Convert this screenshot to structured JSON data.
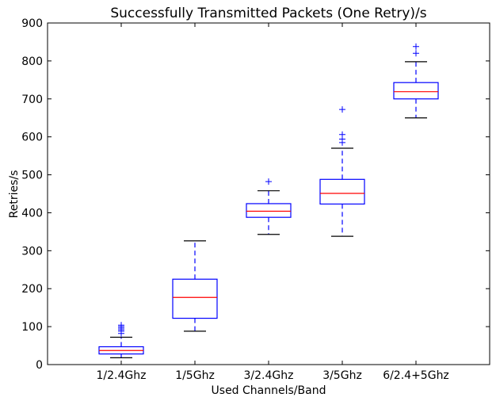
{
  "chart_data": {
    "type": "box",
    "title": "Successfully Transmitted Packets (One Retry)/s",
    "xlabel": "Used Channels/Band",
    "ylabel": "Retries/s",
    "ylim": [
      0,
      900
    ],
    "yticks": [
      0,
      100,
      200,
      300,
      400,
      500,
      600,
      700,
      800,
      900
    ],
    "grid": false,
    "colors": {
      "box": "#0000ff",
      "median": "#ff0000",
      "whisker_cap": "#000000",
      "flier": "#0000ff"
    },
    "categories": [
      "1/2.4Ghz",
      "1/5Ghz",
      "3/2.4Ghz",
      "3/5Ghz",
      "6/2.4+5Ghz"
    ],
    "boxes": [
      {
        "whisker_low": 18,
        "q1": 28,
        "median": 37,
        "q3": 47,
        "whisker_high": 72,
        "fliers": [
          82,
          88,
          92,
          96,
          100,
          104
        ]
      },
      {
        "whisker_low": 88,
        "q1": 122,
        "median": 177,
        "q3": 225,
        "whisker_high": 326,
        "fliers": []
      },
      {
        "whisker_low": 343,
        "q1": 388,
        "median": 404,
        "q3": 424,
        "whisker_high": 458,
        "fliers": [
          482
        ]
      },
      {
        "whisker_low": 338,
        "q1": 423,
        "median": 451,
        "q3": 488,
        "whisker_high": 570,
        "fliers": [
          585,
          594,
          606,
          672
        ]
      },
      {
        "whisker_low": 650,
        "q1": 700,
        "median": 719,
        "q3": 743,
        "whisker_high": 798,
        "fliers": [
          820,
          838
        ]
      }
    ]
  }
}
